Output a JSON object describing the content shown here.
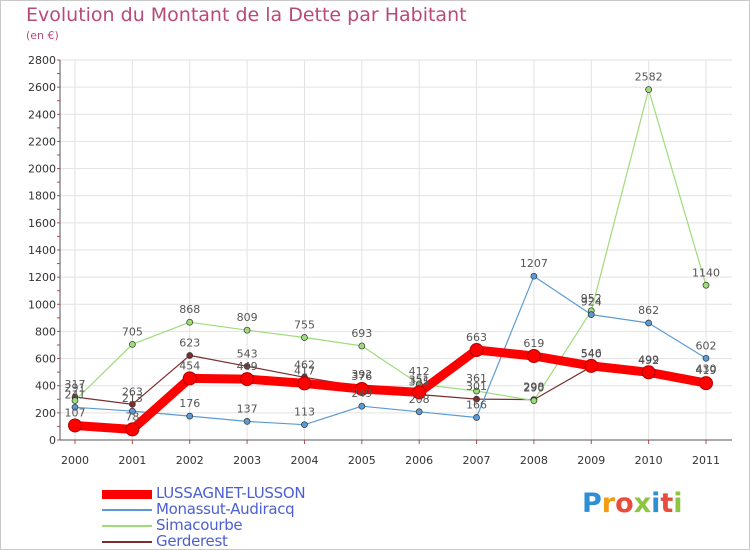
{
  "title": "Evolution du Montant de la Dette par Habitant",
  "subtitle": "(en €)",
  "logo": {
    "text": "Proxiti",
    "colors": [
      "#2f8fd6",
      "#f39c12",
      "#e74c3c",
      "#8cc63f",
      "#2f8fd6",
      "#e74c3c",
      "#8cc63f"
    ]
  },
  "chart_data": {
    "type": "line",
    "x": [
      "2000",
      "2001",
      "2002",
      "2003",
      "2004",
      "2005",
      "2006",
      "2007",
      "2008",
      "2009",
      "2010",
      "2011"
    ],
    "ylim": [
      0,
      2800
    ],
    "yticks": [
      0,
      200,
      400,
      600,
      800,
      1000,
      1200,
      1400,
      1600,
      1800,
      2000,
      2200,
      2400,
      2600,
      2800
    ],
    "grid": true,
    "legend_position": "bottom-left",
    "series": [
      {
        "name": "LUSSAGNET-LUSSON",
        "color": "#ff0000",
        "values": [
          107,
          78,
          454,
          449,
          417,
          376,
          351,
          663,
          619,
          546,
          499,
          419
        ]
      },
      {
        "name": "Monassut-Audiracq",
        "color": "#5b9bd5",
        "values": [
          241,
          213,
          176,
          137,
          113,
          249,
          208,
          166,
          1207,
          924,
          862,
          602
        ]
      },
      {
        "name": "Simacourbe",
        "color": "#9edc7a",
        "values": [
          291,
          705,
          868,
          809,
          755,
          693,
          412,
          361,
          290,
          952,
          2582,
          1140
        ]
      },
      {
        "name": "Gerderest",
        "color": "#7a2e2e",
        "values": [
          317,
          263,
          623,
          543,
          462,
          392,
          335,
          301,
          298,
          540,
          492,
          430
        ]
      }
    ]
  }
}
